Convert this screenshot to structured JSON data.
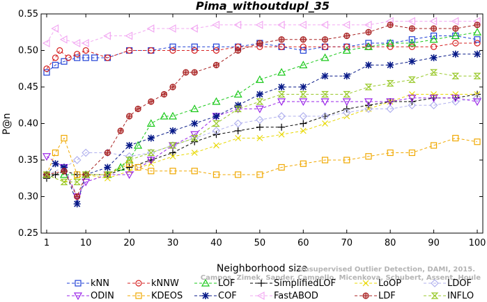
{
  "chart_data": {
    "type": "line",
    "title": "Pima_withoutdupl_35",
    "xlabel": "Neighborhood size",
    "ylabel": "P@n",
    "xlim": [
      0,
      100
    ],
    "ylim": [
      0.25,
      0.55
    ],
    "xticks": [
      1,
      10,
      20,
      30,
      40,
      50,
      60,
      70,
      80,
      90,
      100
    ],
    "yticks": [
      "0.25",
      "0.30",
      "0.35",
      "0.40",
      "0.45",
      "0.50",
      "0.55"
    ],
    "grid": false,
    "legend_position": "bottom",
    "watermark": [
      "Unsupervised Outlier Detection, DAMI, 2015.",
      "Campos, Zimek, Sander, Campello, Micenkova, Schubert, Assent, Houle"
    ],
    "series": [
      {
        "name": "kNN",
        "color": "#1f3fd6",
        "marker": "square",
        "dash": "4,3",
        "points": [
          [
            1,
            0.47
          ],
          [
            3,
            0.48
          ],
          [
            5,
            0.485
          ],
          [
            8,
            0.49
          ],
          [
            10,
            0.49
          ],
          [
            12,
            0.49
          ],
          [
            15,
            0.49
          ],
          [
            20,
            0.5
          ],
          [
            25,
            0.5
          ],
          [
            30,
            0.505
          ],
          [
            35,
            0.505
          ],
          [
            40,
            0.505
          ],
          [
            45,
            0.505
          ],
          [
            50,
            0.51
          ],
          [
            55,
            0.505
          ],
          [
            60,
            0.5
          ],
          [
            65,
            0.505
          ],
          [
            70,
            0.505
          ],
          [
            75,
            0.51
          ],
          [
            80,
            0.51
          ],
          [
            85,
            0.515
          ],
          [
            90,
            0.52
          ],
          [
            95,
            0.52
          ],
          [
            100,
            0.515
          ]
        ]
      },
      {
        "name": "kNNW",
        "color": "#d62020",
        "marker": "circle",
        "dash": "4,3",
        "points": [
          [
            1,
            0.475
          ],
          [
            3,
            0.49
          ],
          [
            4,
            0.5
          ],
          [
            6,
            0.49
          ],
          [
            8,
            0.495
          ],
          [
            10,
            0.5
          ],
          [
            15,
            0.49
          ],
          [
            20,
            0.5
          ],
          [
            25,
            0.5
          ],
          [
            30,
            0.5
          ],
          [
            35,
            0.5
          ],
          [
            40,
            0.5
          ],
          [
            45,
            0.505
          ],
          [
            50,
            0.505
          ],
          [
            55,
            0.505
          ],
          [
            60,
            0.505
          ],
          [
            65,
            0.505
          ],
          [
            70,
            0.505
          ],
          [
            75,
            0.505
          ],
          [
            80,
            0.505
          ],
          [
            85,
            0.505
          ],
          [
            90,
            0.505
          ],
          [
            95,
            0.51
          ],
          [
            100,
            0.51
          ]
        ]
      },
      {
        "name": "LOF",
        "color": "#18c818",
        "marker": "triangle",
        "dash": "4,3",
        "points": [
          [
            1,
            0.33
          ],
          [
            5,
            0.33
          ],
          [
            10,
            0.33
          ],
          [
            15,
            0.33
          ],
          [
            18,
            0.34
          ],
          [
            20,
            0.35
          ],
          [
            22,
            0.37
          ],
          [
            25,
            0.4
          ],
          [
            28,
            0.41
          ],
          [
            30,
            0.41
          ],
          [
            35,
            0.42
          ],
          [
            40,
            0.43
          ],
          [
            45,
            0.44
          ],
          [
            50,
            0.46
          ],
          [
            55,
            0.47
          ],
          [
            60,
            0.48
          ],
          [
            65,
            0.49
          ],
          [
            70,
            0.5
          ],
          [
            75,
            0.505
          ],
          [
            80,
            0.51
          ],
          [
            85,
            0.51
          ],
          [
            90,
            0.515
          ],
          [
            95,
            0.52
          ],
          [
            100,
            0.525
          ]
        ]
      },
      {
        "name": "SimplifiedLOF",
        "color": "#000000",
        "marker": "plus",
        "dash": "4,3",
        "points": [
          [
            1,
            0.325
          ],
          [
            3,
            0.33
          ],
          [
            5,
            0.335
          ],
          [
            8,
            0.33
          ],
          [
            10,
            0.33
          ],
          [
            15,
            0.33
          ],
          [
            20,
            0.34
          ],
          [
            25,
            0.35
          ],
          [
            30,
            0.36
          ],
          [
            35,
            0.375
          ],
          [
            40,
            0.385
          ],
          [
            45,
            0.39
          ],
          [
            50,
            0.395
          ],
          [
            55,
            0.395
          ],
          [
            60,
            0.4
          ],
          [
            65,
            0.41
          ],
          [
            70,
            0.42
          ],
          [
            75,
            0.425
          ],
          [
            80,
            0.43
          ],
          [
            85,
            0.43
          ],
          [
            90,
            0.435
          ],
          [
            95,
            0.435
          ],
          [
            100,
            0.44
          ]
        ]
      },
      {
        "name": "LoOP",
        "color": "#e8d800",
        "marker": "x",
        "dash": "4,3",
        "points": [
          [
            1,
            0.33
          ],
          [
            5,
            0.32
          ],
          [
            10,
            0.33
          ],
          [
            15,
            0.325
          ],
          [
            20,
            0.335
          ],
          [
            25,
            0.345
          ],
          [
            30,
            0.355
          ],
          [
            35,
            0.36
          ],
          [
            40,
            0.37
          ],
          [
            45,
            0.38
          ],
          [
            50,
            0.38
          ],
          [
            55,
            0.385
          ],
          [
            60,
            0.39
          ],
          [
            65,
            0.4
          ],
          [
            70,
            0.41
          ],
          [
            75,
            0.42
          ],
          [
            80,
            0.43
          ],
          [
            85,
            0.44
          ],
          [
            90,
            0.44
          ],
          [
            95,
            0.44
          ],
          [
            100,
            0.44
          ]
        ]
      },
      {
        "name": "LDOF",
        "color": "#b0b0ee",
        "marker": "diamond",
        "dash": "4,3",
        "points": [
          [
            1,
            0.33
          ],
          [
            5,
            0.34
          ],
          [
            8,
            0.35
          ],
          [
            10,
            0.36
          ],
          [
            15,
            0.36
          ],
          [
            20,
            0.355
          ],
          [
            25,
            0.36
          ],
          [
            30,
            0.37
          ],
          [
            35,
            0.38
          ],
          [
            40,
            0.39
          ],
          [
            45,
            0.4
          ],
          [
            50,
            0.405
          ],
          [
            55,
            0.41
          ],
          [
            60,
            0.41
          ],
          [
            65,
            0.41
          ],
          [
            70,
            0.415
          ],
          [
            75,
            0.42
          ],
          [
            80,
            0.42
          ],
          [
            85,
            0.425
          ],
          [
            90,
            0.425
          ],
          [
            95,
            0.43
          ],
          [
            100,
            0.435
          ]
        ]
      },
      {
        "name": "ODIN",
        "color": "#9a25e8",
        "marker": "triangle-down",
        "dash": "4,3",
        "points": [
          [
            1,
            0.355
          ],
          [
            5,
            0.34
          ],
          [
            8,
            0.3
          ],
          [
            10,
            0.32
          ],
          [
            15,
            0.33
          ],
          [
            20,
            0.33
          ],
          [
            25,
            0.35
          ],
          [
            30,
            0.37
          ],
          [
            35,
            0.385
          ],
          [
            40,
            0.41
          ],
          [
            45,
            0.42
          ],
          [
            50,
            0.42
          ],
          [
            55,
            0.43
          ],
          [
            60,
            0.43
          ],
          [
            65,
            0.43
          ],
          [
            70,
            0.43
          ],
          [
            75,
            0.43
          ],
          [
            80,
            0.43
          ],
          [
            85,
            0.435
          ],
          [
            90,
            0.435
          ],
          [
            95,
            0.435
          ],
          [
            100,
            0.43
          ]
        ]
      },
      {
        "name": "KDEOS",
        "color": "#f0a800",
        "marker": "square",
        "dash": "4,3",
        "points": [
          [
            1,
            0.33
          ],
          [
            3,
            0.36
          ],
          [
            5,
            0.38
          ],
          [
            8,
            0.33
          ],
          [
            10,
            0.33
          ],
          [
            15,
            0.33
          ],
          [
            20,
            0.345
          ],
          [
            22,
            0.34
          ],
          [
            25,
            0.335
          ],
          [
            30,
            0.335
          ],
          [
            35,
            0.335
          ],
          [
            40,
            0.33
          ],
          [
            45,
            0.33
          ],
          [
            50,
            0.33
          ],
          [
            55,
            0.34
          ],
          [
            60,
            0.345
          ],
          [
            65,
            0.35
          ],
          [
            70,
            0.35
          ],
          [
            75,
            0.355
          ],
          [
            80,
            0.36
          ],
          [
            85,
            0.36
          ],
          [
            90,
            0.37
          ],
          [
            95,
            0.38
          ],
          [
            100,
            0.375
          ]
        ]
      },
      {
        "name": "COF",
        "color": "#081a88",
        "marker": "star",
        "dash": "4,3",
        "points": [
          [
            1,
            0.33
          ],
          [
            3,
            0.345
          ],
          [
            5,
            0.34
          ],
          [
            8,
            0.29
          ],
          [
            10,
            0.33
          ],
          [
            15,
            0.34
          ],
          [
            20,
            0.37
          ],
          [
            25,
            0.38
          ],
          [
            30,
            0.39
          ],
          [
            35,
            0.4
          ],
          [
            40,
            0.41
          ],
          [
            45,
            0.425
          ],
          [
            50,
            0.44
          ],
          [
            55,
            0.45
          ],
          [
            60,
            0.45
          ],
          [
            65,
            0.465
          ],
          [
            70,
            0.465
          ],
          [
            75,
            0.48
          ],
          [
            80,
            0.48
          ],
          [
            85,
            0.485
          ],
          [
            90,
            0.49
          ],
          [
            95,
            0.495
          ],
          [
            100,
            0.495
          ]
        ]
      },
      {
        "name": "FastABOD",
        "color": "#f2a8f2",
        "marker": "triangle-left",
        "dash": "4,3",
        "points": [
          [
            1,
            0.51
          ],
          [
            3,
            0.53
          ],
          [
            5,
            0.515
          ],
          [
            8,
            0.51
          ],
          [
            10,
            0.51
          ],
          [
            15,
            0.52
          ],
          [
            20,
            0.52
          ],
          [
            25,
            0.53
          ],
          [
            30,
            0.53
          ],
          [
            35,
            0.53
          ],
          [
            40,
            0.535
          ],
          [
            45,
            0.535
          ],
          [
            50,
            0.535
          ],
          [
            55,
            0.535
          ],
          [
            60,
            0.535
          ],
          [
            65,
            0.535
          ],
          [
            70,
            0.535
          ],
          [
            75,
            0.535
          ],
          [
            80,
            0.54
          ],
          [
            85,
            0.54
          ],
          [
            90,
            0.54
          ],
          [
            95,
            0.54
          ],
          [
            100,
            0.54
          ]
        ]
      },
      {
        "name": "LDF",
        "color": "#a82020",
        "marker": "circle-plus",
        "dash": "4,3",
        "points": [
          [
            1,
            0.33
          ],
          [
            5,
            0.335
          ],
          [
            8,
            0.3
          ],
          [
            10,
            0.33
          ],
          [
            15,
            0.36
          ],
          [
            18,
            0.39
          ],
          [
            20,
            0.41
          ],
          [
            22,
            0.42
          ],
          [
            25,
            0.43
          ],
          [
            28,
            0.44
          ],
          [
            30,
            0.45
          ],
          [
            33,
            0.47
          ],
          [
            35,
            0.47
          ],
          [
            40,
            0.48
          ],
          [
            45,
            0.5
          ],
          [
            50,
            0.51
          ],
          [
            55,
            0.515
          ],
          [
            60,
            0.515
          ],
          [
            65,
            0.515
          ],
          [
            70,
            0.52
          ],
          [
            75,
            0.525
          ],
          [
            80,
            0.535
          ],
          [
            85,
            0.53
          ],
          [
            90,
            0.53
          ],
          [
            95,
            0.53
          ],
          [
            100,
            0.535
          ]
        ]
      },
      {
        "name": "INFLO",
        "color": "#98c828",
        "marker": "hourglass",
        "dash": "4,3",
        "points": [
          [
            1,
            0.33
          ],
          [
            5,
            0.32
          ],
          [
            8,
            0.32
          ],
          [
            10,
            0.33
          ],
          [
            15,
            0.33
          ],
          [
            20,
            0.35
          ],
          [
            25,
            0.36
          ],
          [
            30,
            0.37
          ],
          [
            35,
            0.38
          ],
          [
            40,
            0.4
          ],
          [
            45,
            0.42
          ],
          [
            50,
            0.43
          ],
          [
            55,
            0.44
          ],
          [
            60,
            0.44
          ],
          [
            65,
            0.44
          ],
          [
            70,
            0.44
          ],
          [
            75,
            0.45
          ],
          [
            80,
            0.455
          ],
          [
            85,
            0.46
          ],
          [
            90,
            0.47
          ],
          [
            95,
            0.465
          ],
          [
            100,
            0.465
          ]
        ]
      }
    ]
  }
}
